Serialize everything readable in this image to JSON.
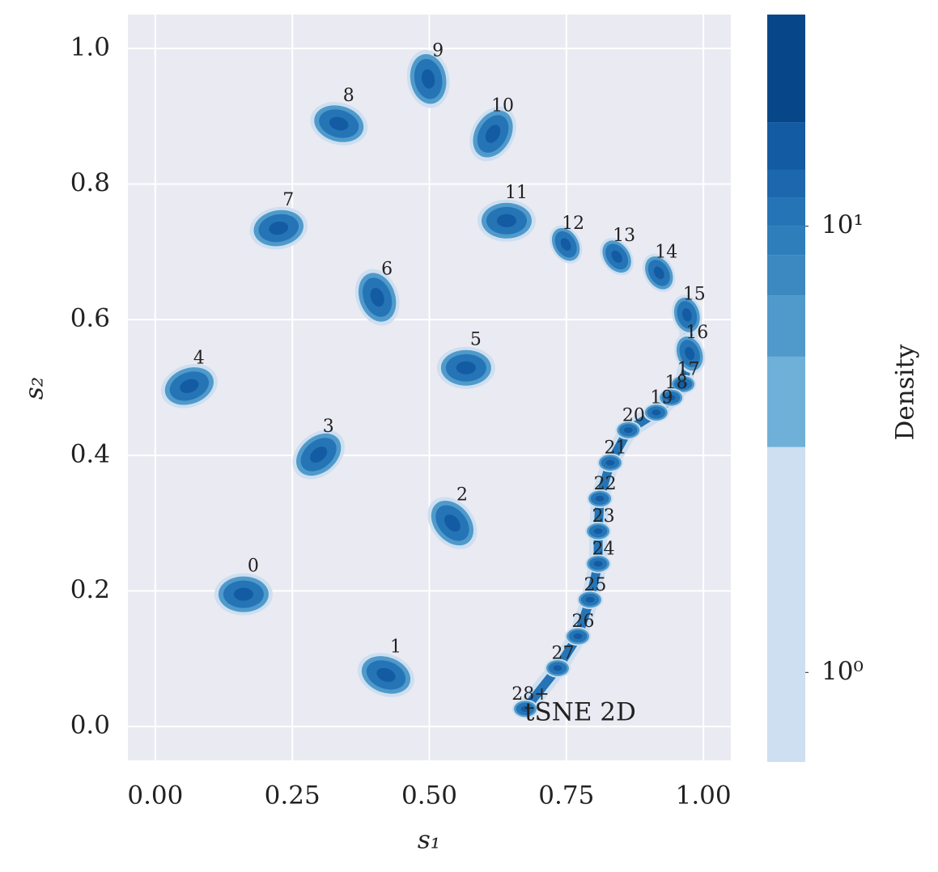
{
  "chart_data": {
    "type": "density",
    "xlabel": "s₁",
    "ylabel": "s₂",
    "annotation": "tSNE 2D",
    "labels": [
      "0",
      "1",
      "2",
      "3",
      "4",
      "5",
      "6",
      "7",
      "8",
      "9",
      "10",
      "11",
      "12",
      "13",
      "14",
      "15",
      "16",
      "17",
      "18",
      "19",
      "20",
      "21",
      "22",
      "23",
      "24",
      "25",
      "26",
      "27",
      "28+"
    ],
    "x": [
      0.161,
      0.421,
      0.542,
      0.298,
      0.062,
      0.567,
      0.405,
      0.225,
      0.335,
      0.498,
      0.616,
      0.641,
      0.749,
      0.842,
      0.919,
      0.97,
      0.975,
      0.963,
      0.941,
      0.914,
      0.863,
      0.83,
      0.811,
      0.808,
      0.808,
      0.793,
      0.771,
      0.734,
      0.675
    ],
    "y": [
      0.195,
      0.076,
      0.3,
      0.401,
      0.502,
      0.529,
      0.633,
      0.735,
      0.889,
      0.955,
      0.874,
      0.746,
      0.711,
      0.693,
      0.669,
      0.607,
      0.55,
      0.505,
      0.485,
      0.463,
      0.437,
      0.389,
      0.336,
      0.288,
      0.24,
      0.187,
      0.133,
      0.086,
      0.026
    ],
    "xlim": [
      -0.05,
      1.05
    ],
    "ylim": [
      -0.05,
      1.05
    ],
    "xticks": [
      {
        "value": 0,
        "label": "0.00"
      },
      {
        "value": 0.25,
        "label": "0.25"
      },
      {
        "value": 0.5,
        "label": "0.50"
      },
      {
        "value": 0.75,
        "label": "0.75"
      },
      {
        "value": 1,
        "label": "1.00"
      }
    ],
    "yticks": [
      {
        "value": 0,
        "label": "0.0"
      },
      0.2,
      0.4,
      0.6,
      0.8,
      {
        "value": 1,
        "label": "1.0"
      }
    ],
    "grid": true,
    "colorbar": {
      "label": "Density",
      "log": true,
      "lim": [
        0.63,
        29.8
      ],
      "levels": [
        0.63,
        3.2,
        5.1,
        7.0,
        8.6,
        10,
        11.6,
        13.4,
        17.1,
        29.8
      ],
      "colors": [
        "#cddff0",
        "#6fb0d8",
        "#4f9acb",
        "#3b89c0",
        "#2e7ebc",
        "#2574b6",
        "#1c67ae",
        "#135ba2",
        "#08468a"
      ],
      "ticks": [
        {
          "value": 1,
          "label": "10⁰"
        },
        {
          "value": 10,
          "label": "10¹"
        }
      ]
    }
  }
}
